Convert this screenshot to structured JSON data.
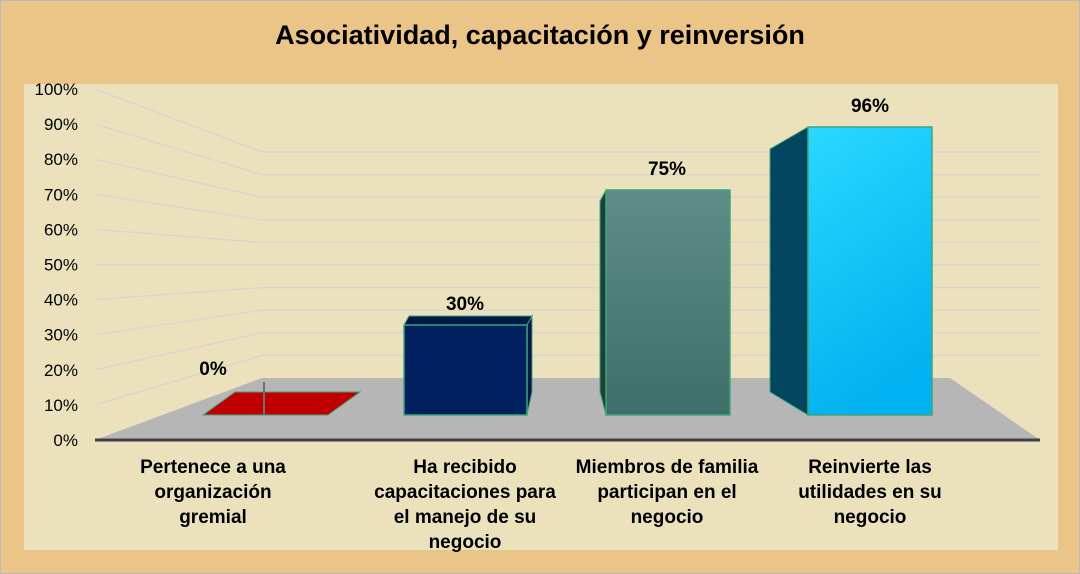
{
  "chart_data": {
    "type": "bar",
    "title": "Asociatividad, capacitación y reinversión",
    "categories": [
      "Pertenece a una organización gremial",
      "Ha recibido capacitaciones para el manejo de su negocio",
      "Miembros de familia participan en el negocio",
      "Reinvierte las utilidades en su negocio"
    ],
    "values": [
      0,
      30,
      75,
      96
    ],
    "data_labels": [
      "0%",
      "30%",
      "75%",
      "96%"
    ],
    "ylim": [
      0,
      100
    ],
    "yticks": [
      "0%",
      "10%",
      "20%",
      "30%",
      "40%",
      "50%",
      "60%",
      "70%",
      "80%",
      "90%",
      "100%"
    ],
    "grid": true,
    "xlabel": "",
    "ylabel": "",
    "colors": [
      "#C00000",
      "#002060",
      "#4A7E7A",
      "#14C2F5"
    ]
  }
}
